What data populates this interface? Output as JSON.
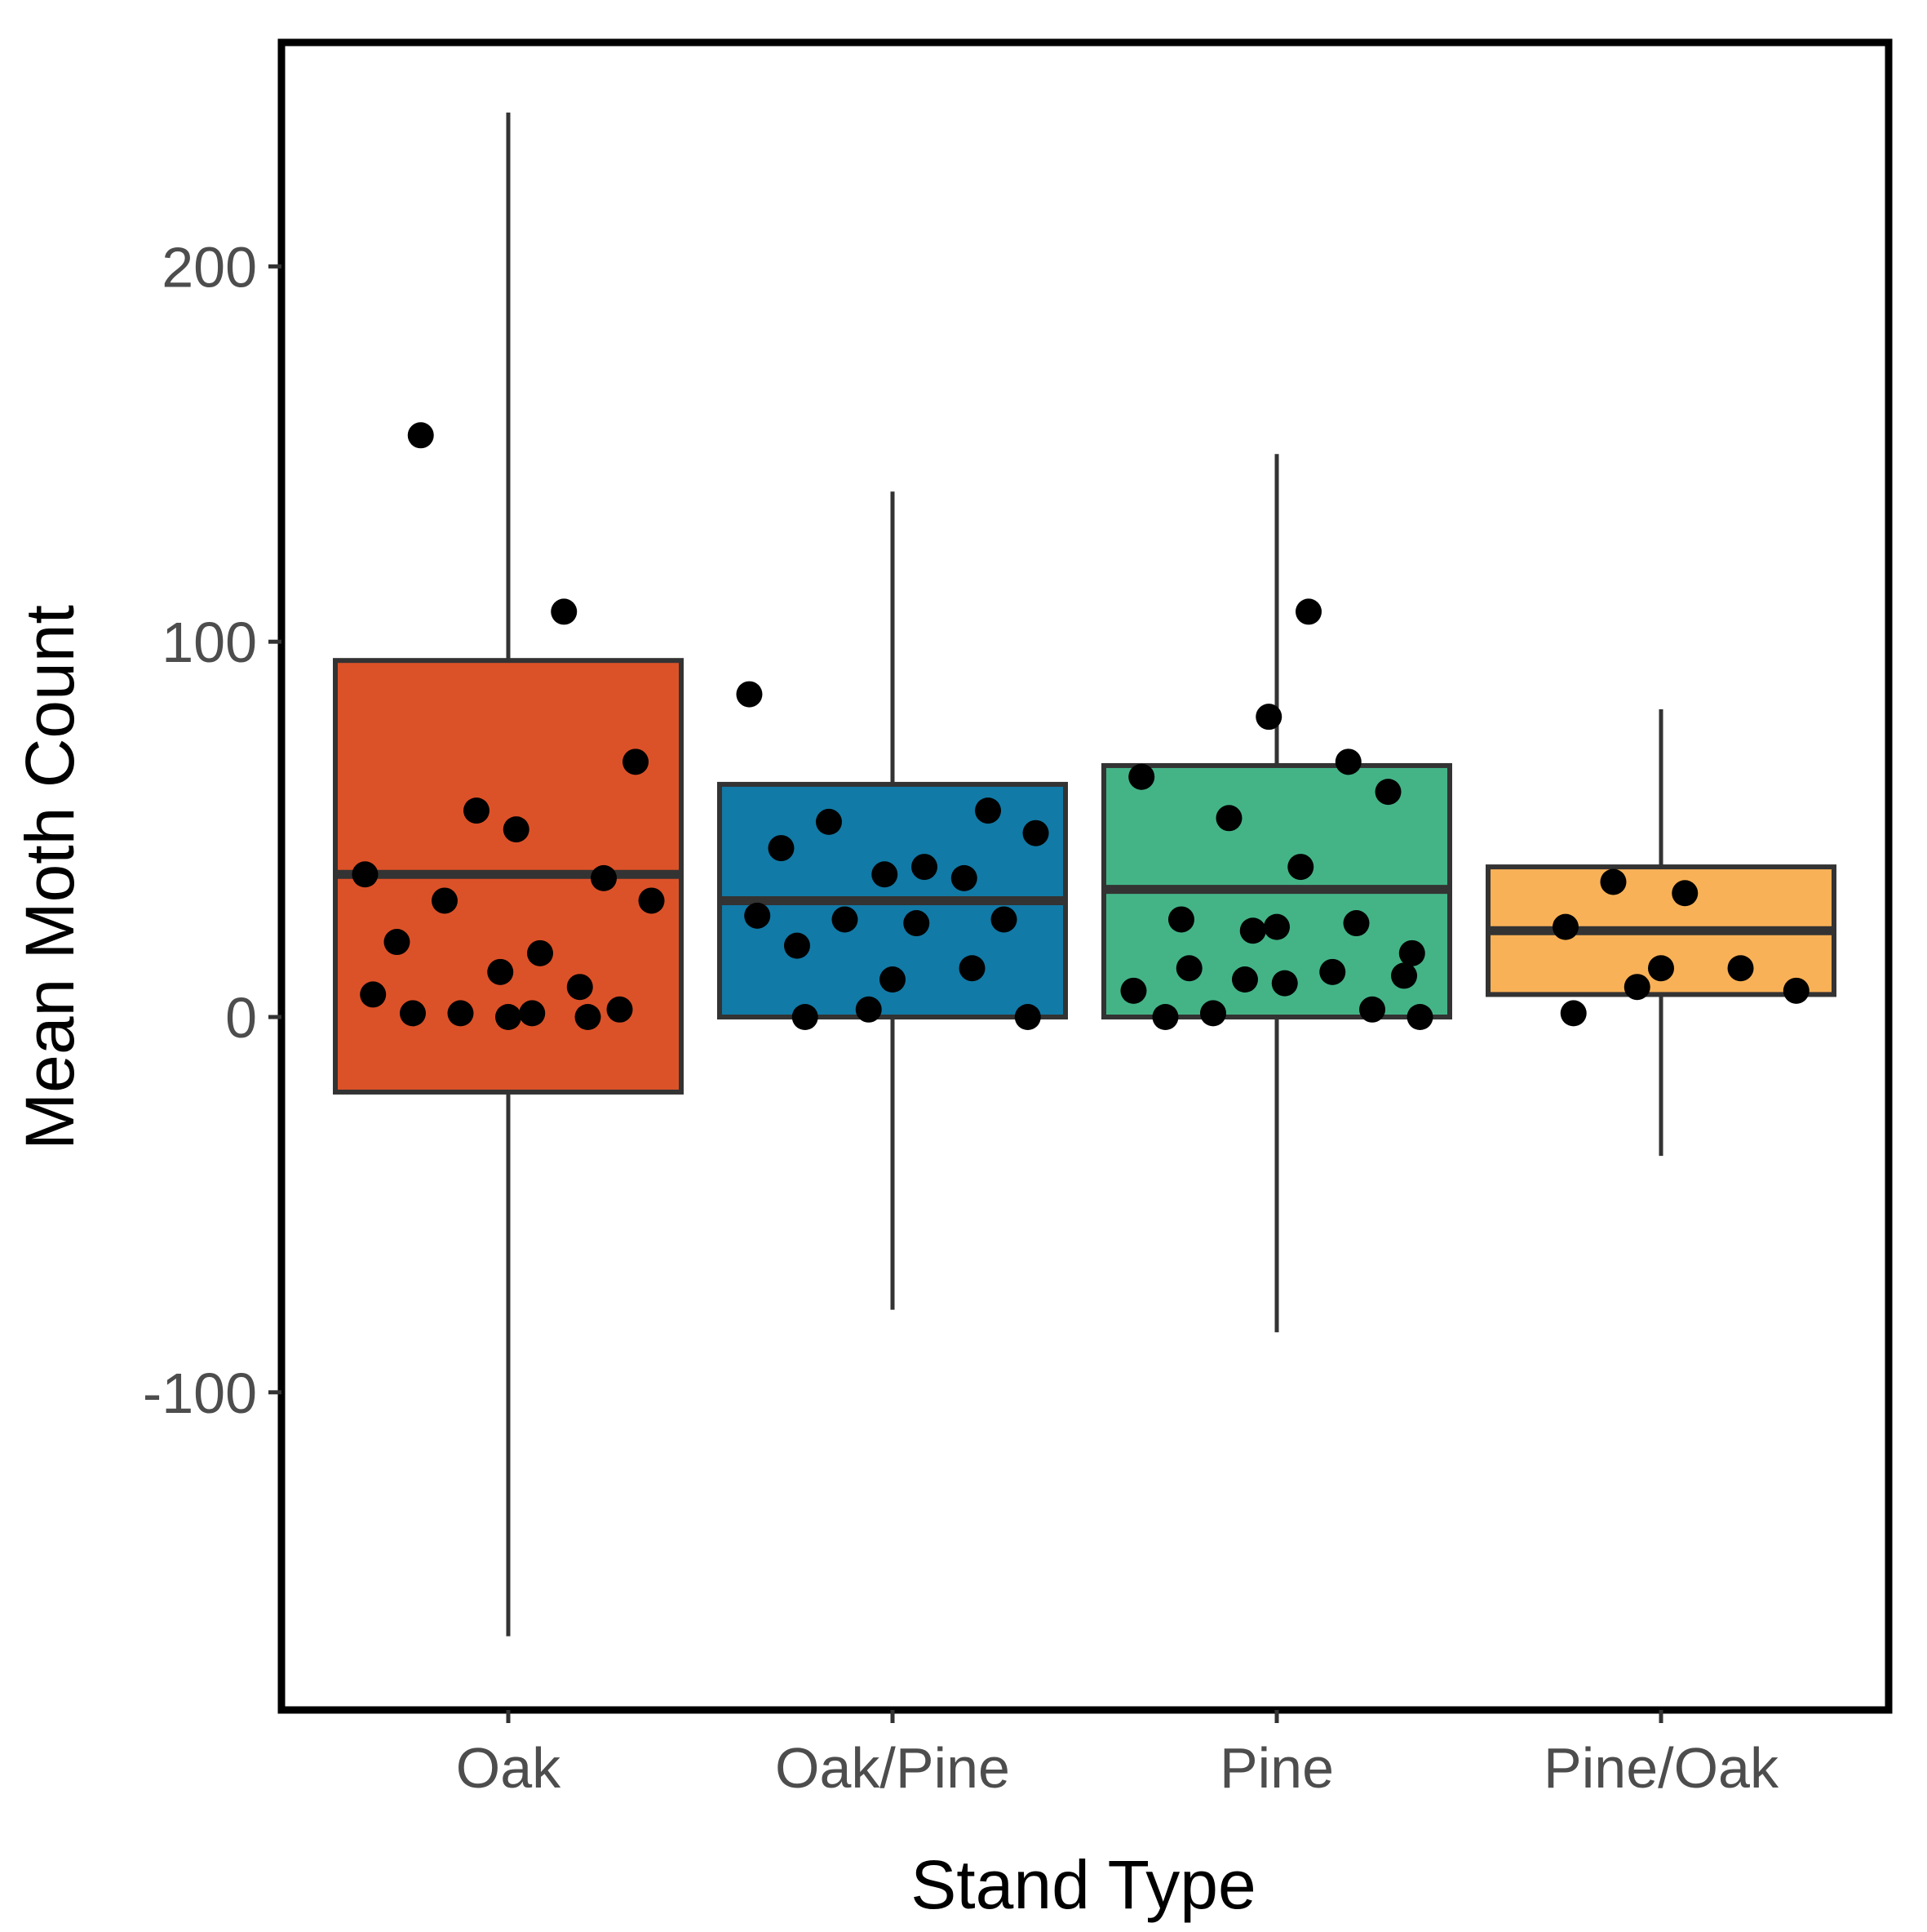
{
  "chart_data": {
    "type": "box",
    "xlabel": "Stand Type",
    "ylabel": "Mean Moth Count",
    "ylim": [
      -185,
      260
    ],
    "yticks": [
      -100,
      0,
      100,
      200
    ],
    "categories": [
      "Oak",
      "Oak/Pine",
      "Pine",
      "Pine/Oak"
    ],
    "colors": [
      "#DC5228",
      "#127AA6",
      "#44B487",
      "#F9B157"
    ],
    "grid": false,
    "legend": "none",
    "boxes": [
      {
        "category": "Oak",
        "whisker_low": -165,
        "q1": -20,
        "median": 38,
        "q3": 95,
        "whisker_high": 241
      },
      {
        "category": "Oak/Pine",
        "whisker_low": -78,
        "q1": 0,
        "median": 31,
        "q3": 62,
        "whisker_high": 140
      },
      {
        "category": "Pine",
        "whisker_low": -84,
        "q1": 0,
        "median": 34,
        "q3": 67,
        "whisker_high": 150
      },
      {
        "category": "Pine/Oak",
        "whisker_low": -37,
        "q1": 6,
        "median": 23,
        "q3": 40,
        "whisker_high": 82
      }
    ],
    "points": [
      {
        "category": "Oak",
        "y": [
          155,
          108,
          68,
          55,
          50,
          38,
          37,
          31,
          31,
          20,
          17,
          12,
          8,
          6,
          2,
          1,
          1,
          1,
          0,
          0
        ]
      },
      {
        "category": "Oak/Pine",
        "y": [
          86,
          55,
          52,
          49,
          45,
          40,
          38,
          37,
          27,
          26,
          26,
          25,
          19,
          13,
          10,
          2,
          0,
          0
        ]
      },
      {
        "category": "Pine",
        "y": [
          108,
          80,
          68,
          64,
          60,
          53,
          40,
          26,
          25,
          24,
          23,
          17,
          13,
          12,
          11,
          10,
          9,
          7,
          2,
          1,
          0,
          0
        ]
      },
      {
        "category": "Pine/Oak",
        "y": [
          36,
          33,
          24,
          13,
          13,
          8,
          7,
          1
        ]
      }
    ]
  }
}
